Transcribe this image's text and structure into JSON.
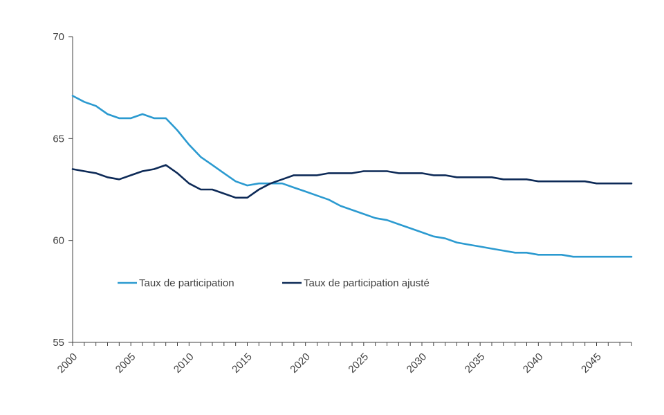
{
  "chart_data": {
    "type": "line",
    "title": "",
    "xlabel": "",
    "ylabel": "",
    "xlim": [
      2000,
      2048
    ],
    "ylim": [
      55,
      70
    ],
    "x_ticks": [
      2000,
      2005,
      2010,
      2015,
      2020,
      2025,
      2030,
      2035,
      2040,
      2045
    ],
    "y_ticks": [
      55,
      60,
      65,
      70
    ],
    "x_tick_labels": [
      "2000",
      "2005",
      "2010",
      "2015",
      "2020",
      "2025",
      "2030",
      "2035",
      "2040",
      "2045"
    ],
    "y_tick_labels": [
      "55",
      "60",
      "65",
      "70"
    ],
    "grid": false,
    "legend_placement": "inside-lower-left",
    "x": [
      2000,
      2001,
      2002,
      2003,
      2004,
      2005,
      2006,
      2007,
      2008,
      2009,
      2010,
      2011,
      2012,
      2013,
      2014,
      2015,
      2016,
      2017,
      2018,
      2019,
      2020,
      2021,
      2022,
      2023,
      2024,
      2025,
      2026,
      2027,
      2028,
      2029,
      2030,
      2031,
      2032,
      2033,
      2034,
      2035,
      2036,
      2037,
      2038,
      2039,
      2040,
      2041,
      2042,
      2043,
      2044,
      2045,
      2046,
      2047,
      2048
    ],
    "series": [
      {
        "name": "Taux de participation",
        "color": "#2B9AD0",
        "values": [
          67.1,
          66.8,
          66.6,
          66.2,
          66.0,
          66.0,
          66.2,
          66.0,
          66.0,
          65.4,
          64.7,
          64.1,
          63.7,
          63.3,
          62.9,
          62.7,
          62.8,
          62.8,
          62.8,
          62.6,
          62.4,
          62.2,
          62.0,
          61.7,
          61.5,
          61.3,
          61.1,
          61.0,
          60.8,
          60.6,
          60.4,
          60.2,
          60.1,
          59.9,
          59.8,
          59.7,
          59.6,
          59.5,
          59.4,
          59.4,
          59.3,
          59.3,
          59.3,
          59.2,
          59.2,
          59.2,
          59.2,
          59.2,
          59.2
        ]
      },
      {
        "name": "Taux de participation ajusté",
        "color": "#0D2A57",
        "values": [
          63.5,
          63.4,
          63.3,
          63.1,
          63.0,
          63.2,
          63.4,
          63.5,
          63.7,
          63.3,
          62.8,
          62.5,
          62.5,
          62.3,
          62.1,
          62.1,
          62.5,
          62.8,
          63.0,
          63.2,
          63.2,
          63.2,
          63.3,
          63.3,
          63.3,
          63.4,
          63.4,
          63.4,
          63.3,
          63.3,
          63.3,
          63.2,
          63.2,
          63.1,
          63.1,
          63.1,
          63.1,
          63.0,
          63.0,
          63.0,
          62.9,
          62.9,
          62.9,
          62.9,
          62.9,
          62.8,
          62.8,
          62.8,
          62.8
        ]
      }
    ]
  },
  "colors": {
    "axis": "#404040",
    "background": "#ffffff"
  }
}
